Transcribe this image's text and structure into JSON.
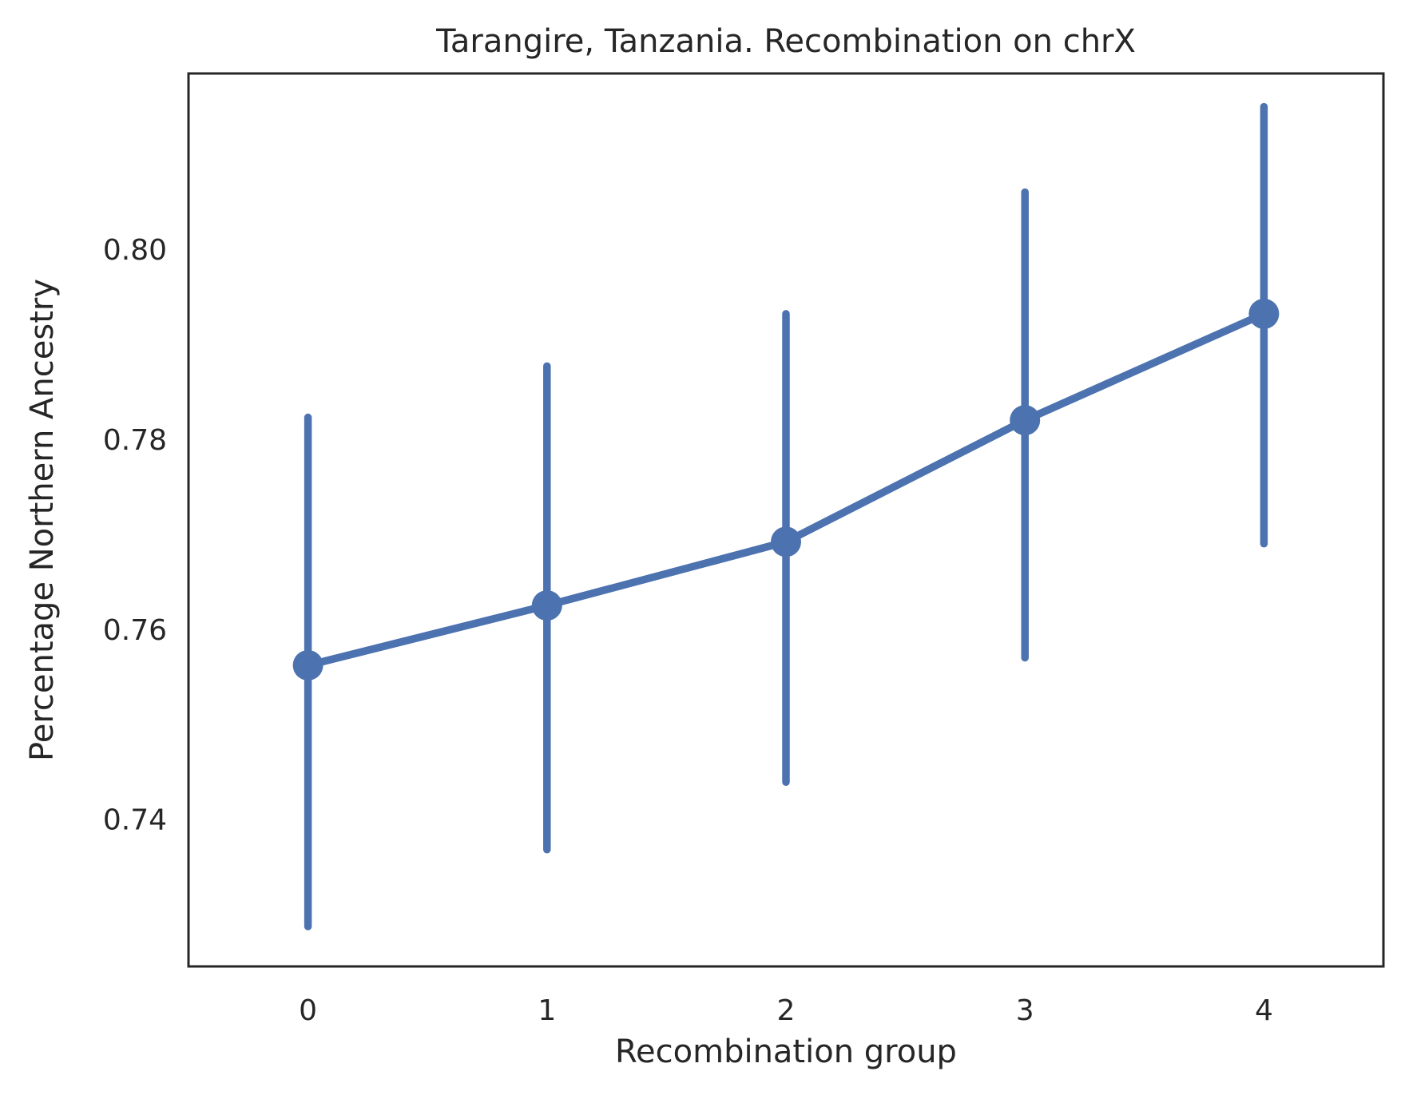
{
  "chart_data": {
    "type": "line",
    "title": "Tarangire, Tanzania. Recombination on chrX",
    "xlabel": "Recombination group",
    "ylabel": "Percentage Northern Ancestry",
    "categories": [
      "0",
      "1",
      "2",
      "3",
      "4"
    ],
    "yticks": [
      "0.74",
      "0.76",
      "0.78",
      "0.80"
    ],
    "ylim": [
      0.7245,
      0.8185
    ],
    "grid": false,
    "color": "#4c72b0",
    "series": [
      {
        "values": [
          0.7562,
          0.7625,
          0.7692,
          0.782,
          0.7932
        ],
        "ci_low": [
          0.7287,
          0.7368,
          0.7439,
          0.757,
          0.769
        ],
        "ci_high": [
          0.7823,
          0.7877,
          0.7932,
          0.806,
          0.815
        ]
      }
    ]
  }
}
